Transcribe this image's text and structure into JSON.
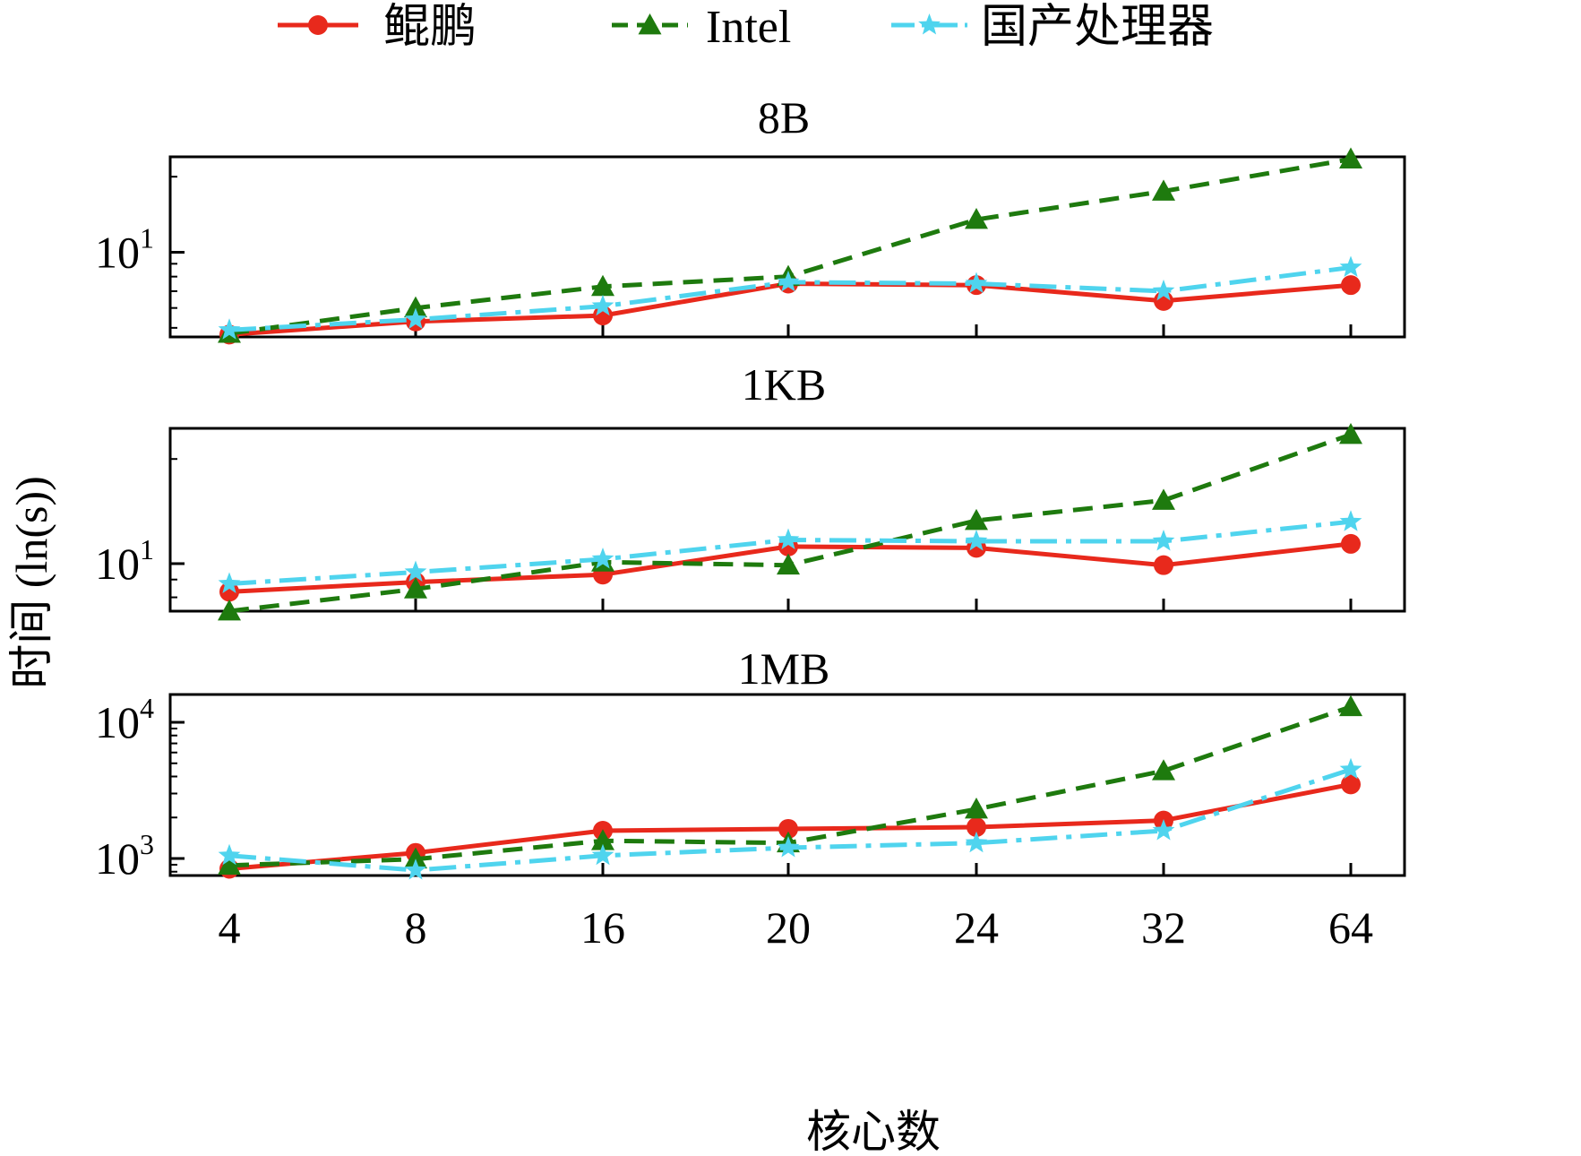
{
  "colors": {
    "kunpeng": "#e8291c",
    "intel": "#1e7a0e",
    "domestic": "#4fd4ee",
    "axis": "#000000"
  },
  "legend": {
    "placement": "top",
    "items": [
      {
        "label": "鲲鹏",
        "marker": "circle",
        "line": "solid"
      },
      {
        "label": "Intel",
        "marker": "triangle",
        "line": "dashed"
      },
      {
        "label": "国产处理器",
        "marker": "star",
        "line": "dashdot"
      }
    ]
  },
  "xlabel": "核心数",
  "ylabel": "时间 (ln(s))",
  "chart_data": [
    {
      "type": "line",
      "title": "8B",
      "categories": [
        "4",
        "8",
        "16",
        "20",
        "24",
        "32",
        "64"
      ],
      "yscale": "log",
      "ylim": [
        4.6,
        24
      ],
      "yticks": [
        {
          "value": 10,
          "label": "10",
          "exp": "1"
        }
      ],
      "series": [
        {
          "name": "鲲鹏",
          "values": [
            4.7,
            5.3,
            5.6,
            7.5,
            7.4,
            6.4,
            7.4
          ]
        },
        {
          "name": "Intel",
          "values": [
            4.75,
            6.0,
            7.3,
            8.0,
            13.5,
            17.5,
            23.5
          ]
        },
        {
          "name": "国产处理器",
          "values": [
            4.9,
            5.4,
            6.1,
            7.6,
            7.5,
            7.0,
            8.7
          ]
        }
      ]
    },
    {
      "type": "line",
      "title": "1KB",
      "categories": [
        "4",
        "8",
        "16",
        "20",
        "24",
        "32",
        "64"
      ],
      "yscale": "log",
      "ylim": [
        7.3,
        24.5
      ],
      "yticks": [
        {
          "value": 10,
          "label": "10",
          "exp": "1"
        }
      ],
      "series": [
        {
          "name": "鲲鹏",
          "values": [
            8.3,
            8.85,
            9.3,
            11.2,
            11.1,
            9.9,
            11.4
          ]
        },
        {
          "name": "Intel",
          "values": [
            7.3,
            8.45,
            10.1,
            9.9,
            13.3,
            15.2,
            23.5
          ]
        },
        {
          "name": "国产处理器",
          "values": [
            8.75,
            9.45,
            10.3,
            11.7,
            11.6,
            11.6,
            13.2
          ]
        }
      ]
    },
    {
      "type": "line",
      "title": "1MB",
      "categories": [
        "4",
        "8",
        "16",
        "20",
        "24",
        "32",
        "64"
      ],
      "yscale": "log",
      "ylim": [
        750,
        16000
      ],
      "yticks": [
        {
          "value": 1000,
          "label": "10",
          "exp": "3"
        },
        {
          "value": 10000,
          "label": "10",
          "exp": "4"
        }
      ],
      "series": [
        {
          "name": "鲲鹏",
          "values": [
            840,
            1100,
            1600,
            1650,
            1700,
            1900,
            3500
          ]
        },
        {
          "name": "Intel",
          "values": [
            890,
            990,
            1350,
            1300,
            2300,
            4400,
            13000
          ]
        },
        {
          "name": "国产处理器",
          "values": [
            1050,
            820,
            1050,
            1200,
            1300,
            1600,
            4500
          ]
        }
      ]
    }
  ]
}
